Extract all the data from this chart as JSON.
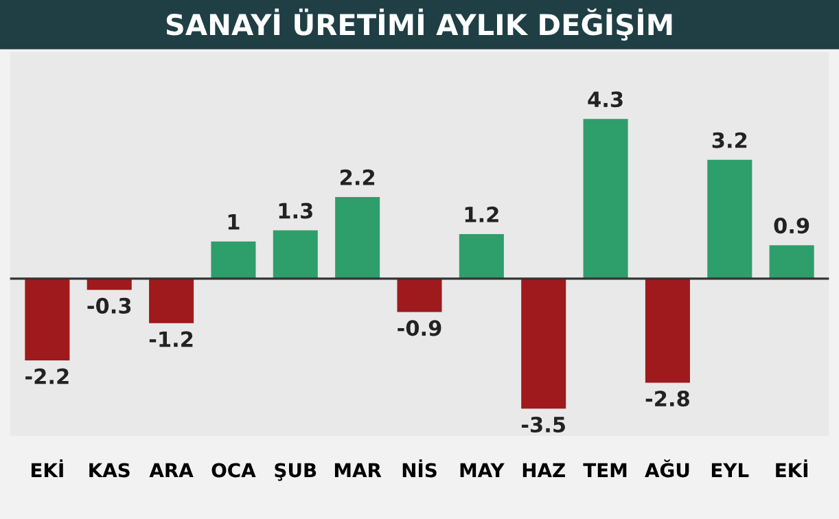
{
  "chart_data": {
    "type": "bar",
    "title": "SANAYİ ÜRETİMİ AYLIK DEĞİŞİM",
    "categories": [
      "EKİ",
      "KAS",
      "ARA",
      "OCA",
      "ŞUB",
      "MAR",
      "NİS",
      "MAY",
      "HAZ",
      "TEM",
      "AĞU",
      "EYL",
      "EKİ"
    ],
    "values": [
      -2.2,
      -0.3,
      -1.2,
      1,
      1.3,
      2.2,
      -0.9,
      1.2,
      -3.5,
      4.3,
      -2.8,
      3.2,
      0.9
    ],
    "colors": [
      "#9e1a1c",
      "#9e1a1c",
      "#9e1a1c",
      "#2e9e6b",
      "#2e9e6b",
      "#2e9e6b",
      "#9e1a1c",
      "#2e9e6b",
      "#9e1a1c",
      "#2e9e6b",
      "#9e1a1c",
      "#2e9e6b",
      "#2e9e6b"
    ],
    "data_labels": true,
    "grid": false
  }
}
